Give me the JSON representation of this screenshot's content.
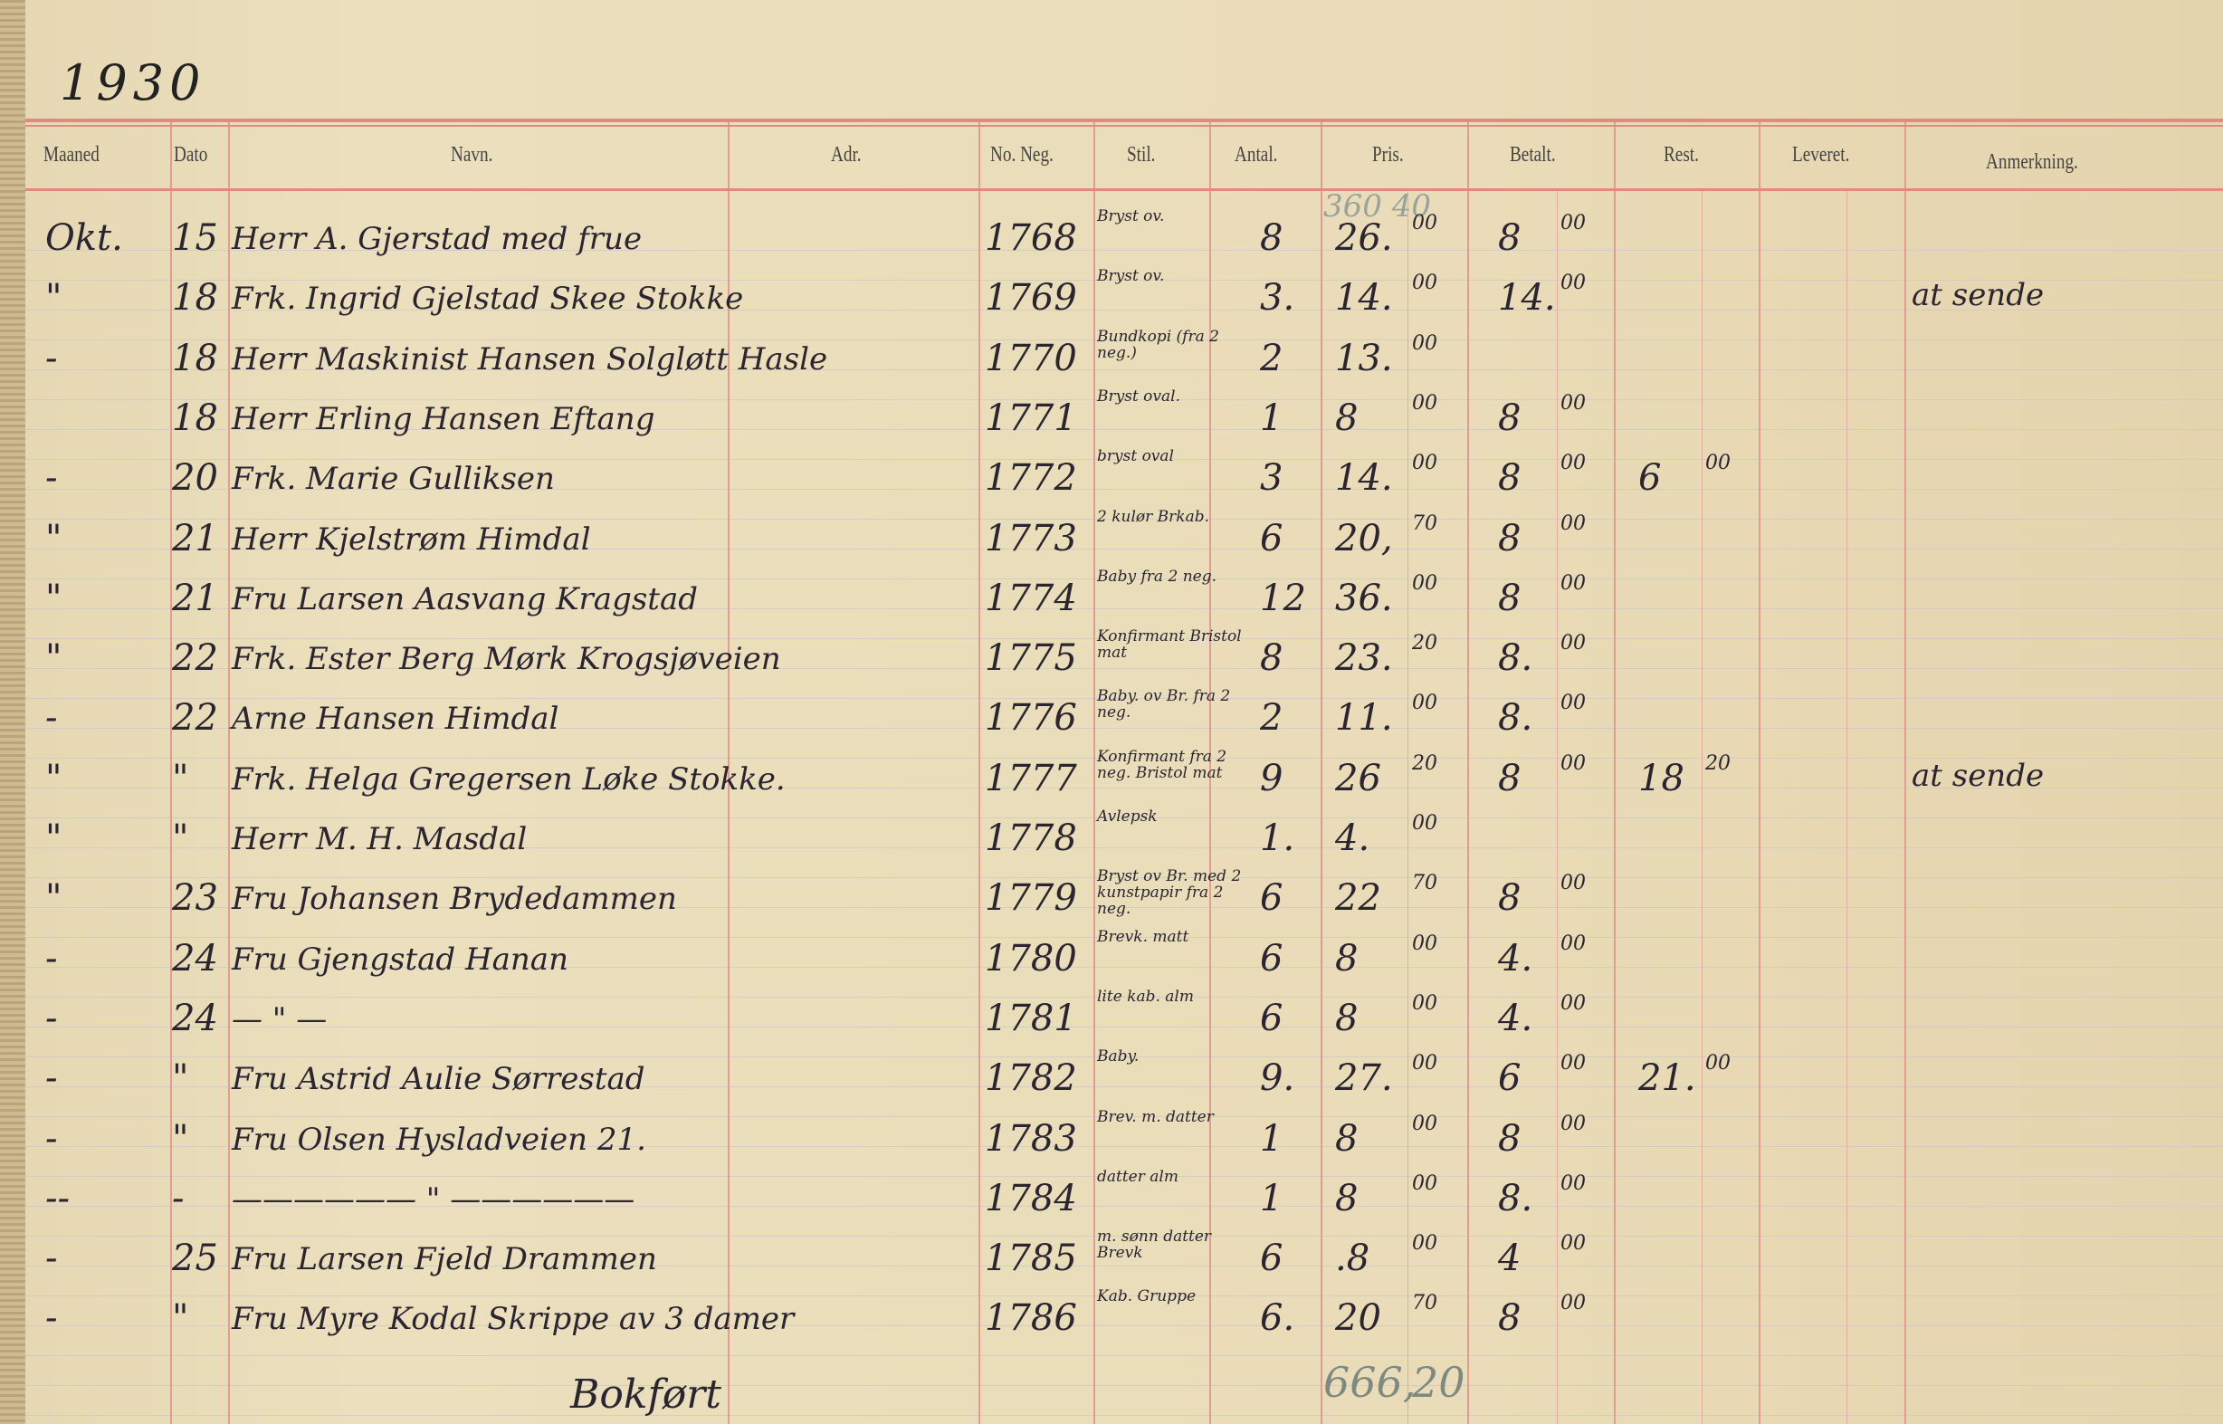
{
  "year": "1930",
  "headers": {
    "maaned": "Maaned",
    "dato": "Dato",
    "navn": "Navn.",
    "adr": "Adr.",
    "no_neg": "No. Neg.",
    "stil": "Stil.",
    "antal": "Antal.",
    "pris": "Pris.",
    "betalt": "Betalt.",
    "rest": "Rest.",
    "leveret": "Leveret.",
    "anmerkning": "Anmerkning."
  },
  "faint_total_above": "360 40",
  "rows": [
    {
      "maaned": "Okt.",
      "dato": "15",
      "navn": "Herr A. Gjerstad med frue",
      "neg": "1768",
      "stil": "Bryst ov.",
      "antal": "8",
      "pris_kr": "26.",
      "pris_ore": "00",
      "betalt_kr": "8",
      "betalt_ore": "00",
      "rest_kr": "",
      "rest_ore": "",
      "anm": ""
    },
    {
      "maaned": "\"",
      "dato": "18",
      "navn": "Frk. Ingrid Gjelstad Skee Stokke",
      "neg": "1769",
      "stil": "Bryst ov.",
      "antal": "3.",
      "pris_kr": "14.",
      "pris_ore": "00",
      "betalt_kr": "14.",
      "betalt_ore": "00",
      "rest_kr": "",
      "rest_ore": "",
      "anm": "at sende"
    },
    {
      "maaned": "-",
      "dato": "18",
      "navn": "Herr Maskinist Hansen Solgløtt Hasle",
      "neg": "1770",
      "stil": "Bundkopi (fra 2 neg.)",
      "antal": "2",
      "pris_kr": "13.",
      "pris_ore": "00",
      "betalt_kr": "",
      "betalt_ore": "",
      "rest_kr": "",
      "rest_ore": "",
      "anm": ""
    },
    {
      "maaned": "",
      "dato": "18",
      "navn": "Herr Erling Hansen Eftang",
      "neg": "1771",
      "stil": "Bryst oval.",
      "antal": "1",
      "pris_kr": "8",
      "pris_ore": "00",
      "betalt_kr": "8",
      "betalt_ore": "00",
      "rest_kr": "",
      "rest_ore": "",
      "anm": ""
    },
    {
      "maaned": "-",
      "dato": "20",
      "navn": "Frk. Marie Gulliksen",
      "neg": "1772",
      "stil": "bryst oval",
      "antal": "3",
      "pris_kr": "14.",
      "pris_ore": "00",
      "betalt_kr": "8",
      "betalt_ore": "00",
      "rest_kr": "6",
      "rest_ore": "00",
      "anm": ""
    },
    {
      "maaned": "\"",
      "dato": "21",
      "navn": "Herr Kjelstrøm Himdal",
      "neg": "1773",
      "stil": "2 kulør Brkab.",
      "antal": "6",
      "pris_kr": "20,",
      "pris_ore": "70",
      "betalt_kr": "8",
      "betalt_ore": "00",
      "rest_kr": "",
      "rest_ore": "",
      "anm": ""
    },
    {
      "maaned": "\"",
      "dato": "21",
      "navn": "Fru Larsen Aasvang Kragstad",
      "neg": "1774",
      "stil": "Baby fra 2 neg.",
      "antal": "12",
      "pris_kr": "36.",
      "pris_ore": "00",
      "betalt_kr": "8",
      "betalt_ore": "00",
      "rest_kr": "",
      "rest_ore": "",
      "anm": ""
    },
    {
      "maaned": "\"",
      "dato": "22",
      "navn": "Frk. Ester Berg  Mørk Krogsjøveien",
      "neg": "1775",
      "stil": "Konfirmant Bristol mat",
      "antal": "8",
      "pris_kr": "23.",
      "pris_ore": "20",
      "betalt_kr": "8.",
      "betalt_ore": "00",
      "rest_kr": "",
      "rest_ore": "",
      "anm": ""
    },
    {
      "maaned": "-",
      "dato": "22",
      "navn": "Arne Hansen Himdal",
      "neg": "1776",
      "stil": "Baby. ov Br. fra 2 neg.",
      "antal": "2",
      "pris_kr": "11.",
      "pris_ore": "00",
      "betalt_kr": "8.",
      "betalt_ore": "00",
      "rest_kr": "",
      "rest_ore": "",
      "anm": ""
    },
    {
      "maaned": "\"",
      "dato": "\"",
      "navn": "Frk. Helga Gregersen Løke Stokke.",
      "neg": "1777",
      "stil": "Konfirmant fra 2 neg. Bristol mat",
      "antal": "9",
      "pris_kr": "26",
      "pris_ore": "20",
      "betalt_kr": "8",
      "betalt_ore": "00",
      "rest_kr": "18",
      "rest_ore": "20",
      "anm": "at sende"
    },
    {
      "maaned": "\"",
      "dato": "\"",
      "navn": "Herr M. H. Masdal",
      "neg": "1778",
      "stil": "Avlepsk",
      "antal": "1.",
      "pris_kr": "4.",
      "pris_ore": "00",
      "betalt_kr": "",
      "betalt_ore": "",
      "rest_kr": "",
      "rest_ore": "",
      "anm": ""
    },
    {
      "maaned": "\"",
      "dato": "23",
      "navn": "Fru Johansen Brydedammen",
      "neg": "1779",
      "stil": "Bryst ov Br. med 2 kunstpapir fra 2 neg.",
      "antal": "6",
      "pris_kr": "22",
      "pris_ore": "70",
      "betalt_kr": "8",
      "betalt_ore": "00",
      "rest_kr": "",
      "rest_ore": "",
      "anm": ""
    },
    {
      "maaned": "-",
      "dato": "24",
      "navn": "Fru Gjengstad Hanan",
      "neg": "1780",
      "stil": "Brevk. matt",
      "antal": "6",
      "pris_kr": "8",
      "pris_ore": "00",
      "betalt_kr": "4.",
      "betalt_ore": "00",
      "rest_kr": "",
      "rest_ore": "",
      "anm": ""
    },
    {
      "maaned": "-",
      "dato": "24",
      "navn": "— \" —",
      "neg": "1781",
      "stil": "lite kab. alm",
      "antal": "6",
      "pris_kr": "8",
      "pris_ore": "00",
      "betalt_kr": "4.",
      "betalt_ore": "00",
      "rest_kr": "",
      "rest_ore": "",
      "anm": ""
    },
    {
      "maaned": "-",
      "dato": "\"",
      "navn": "Fru Astrid Aulie Sørrestad",
      "neg": "1782",
      "stil": "Baby.",
      "antal": "9.",
      "pris_kr": "27.",
      "pris_ore": "00",
      "betalt_kr": "6",
      "betalt_ore": "00",
      "rest_kr": "21.",
      "rest_ore": "00",
      "anm": ""
    },
    {
      "maaned": "-",
      "dato": "\"",
      "navn": "Fru Olsen  Hysladveien 21.",
      "neg": "1783",
      "stil": "Brev. m. datter",
      "antal": "1",
      "pris_kr": "8",
      "pris_ore": "00",
      "betalt_kr": "8",
      "betalt_ore": "00",
      "rest_kr": "",
      "rest_ore": "",
      "anm": ""
    },
    {
      "maaned": "--",
      "dato": "-",
      "navn": "—————— \" ——————",
      "neg": "1784",
      "stil": "datter alm",
      "antal": "1",
      "pris_kr": "8",
      "pris_ore": "00",
      "betalt_kr": "8.",
      "betalt_ore": "00",
      "rest_kr": "",
      "rest_ore": "",
      "anm": ""
    },
    {
      "maaned": "-",
      "dato": "25",
      "navn": "Fru Larsen Fjeld Drammen",
      "neg": "1785",
      "stil": "m. sønn datter Brevk",
      "antal": "6",
      "pris_kr": ".8",
      "pris_ore": "00",
      "betalt_kr": "4",
      "betalt_ore": "00",
      "rest_kr": "",
      "rest_ore": "",
      "anm": ""
    },
    {
      "maaned": "-",
      "dato": "\"",
      "navn": "Fru Myre  Kodal Skrippe av 3 damer",
      "neg": "1786",
      "stil": "Kab. Gruppe",
      "antal": "6.",
      "pris_kr": "20",
      "pris_ore": "70",
      "betalt_kr": "8",
      "betalt_ore": "00",
      "rest_kr": "",
      "rest_ore": "",
      "anm": ""
    }
  ],
  "footer": {
    "note": "Bokført",
    "total_kr": "666,",
    "total_ore": "20"
  }
}
